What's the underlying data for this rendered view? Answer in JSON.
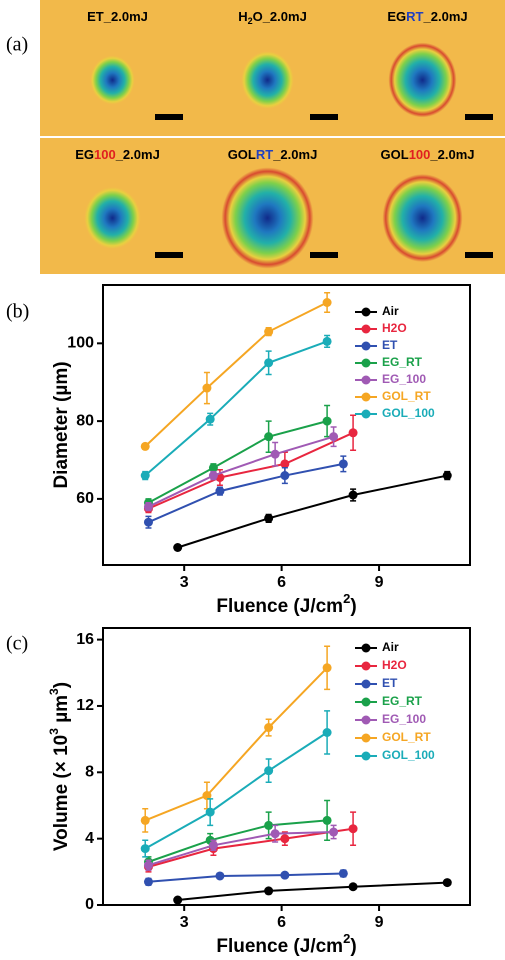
{
  "panel_a": {
    "label": "(a)",
    "images": [
      {
        "parts": [
          "ET",
          "_2.0mJ"
        ]
      },
      {
        "parts": [
          "H",
          "2",
          "O_2.0mJ"
        ]
      },
      {
        "parts": [
          "EG",
          "RT",
          "_2.0mJ"
        ]
      },
      {
        "parts": [
          "EG",
          "100",
          "_2.0mJ"
        ]
      },
      {
        "parts": [
          "GOL",
          "RT",
          "_2.0mJ"
        ]
      },
      {
        "parts": [
          "GOL",
          "100",
          "_2.0mJ"
        ]
      }
    ]
  },
  "chart_data": [
    {
      "type": "line",
      "panel": "(b)",
      "y_label": "Diameter (µm)",
      "x_label": [
        "Fluence (J/cm",
        "2",
        ")"
      ],
      "xlim": [
        0.5,
        11.8
      ],
      "xticks": [
        3,
        6,
        9
      ],
      "ylim": [
        43,
        115
      ],
      "yticks": [
        60,
        80,
        100
      ],
      "legend": "upper right",
      "series": [
        {
          "name": "Air",
          "color": "#000000",
          "x": [
            2.8,
            5.6,
            8.2,
            11.1
          ],
          "values": [
            47.5,
            55,
            61,
            66
          ],
          "errors": [
            0.5,
            1,
            1.5,
            1
          ]
        },
        {
          "name": "H2O",
          "color": "#e8263f",
          "x": [
            1.9,
            4.1,
            6.1,
            8.2
          ],
          "values": [
            57.5,
            65.5,
            69,
            77
          ],
          "errors": [
            1,
            2,
            3,
            4.5
          ]
        },
        {
          "name": "ET",
          "color": "#3050b0",
          "x": [
            1.9,
            4.1,
            6.1,
            7.9
          ],
          "values": [
            54,
            62,
            66,
            69
          ],
          "errors": [
            1.5,
            1,
            2,
            2
          ]
        },
        {
          "name": "EG_RT",
          "color": "#1aa14a",
          "x": [
            1.9,
            3.9,
            5.6,
            7.4
          ],
          "values": [
            59,
            68,
            76,
            80
          ],
          "errors": [
            1,
            1,
            4,
            4
          ]
        },
        {
          "name": "EG_100",
          "color": "#a05ab4",
          "x": [
            1.9,
            3.9,
            5.8,
            7.6
          ],
          "values": [
            58,
            66,
            71.5,
            76
          ],
          "errors": [
            1,
            1,
            3,
            2.5
          ]
        },
        {
          "name": "GOL_RT",
          "color": "#f5a623",
          "x": [
            1.8,
            3.7,
            5.6,
            7.4
          ],
          "values": [
            73.5,
            88.5,
            103,
            110.5
          ],
          "errors": [
            0.5,
            4,
            1,
            2.5
          ]
        },
        {
          "name": "GOL_100",
          "color": "#1aacb8",
          "x": [
            1.8,
            3.8,
            5.6,
            7.4
          ],
          "values": [
            66,
            80.5,
            95,
            100.5
          ],
          "errors": [
            1,
            1.5,
            3,
            1.5
          ]
        }
      ]
    },
    {
      "type": "line",
      "panel": "(c)",
      "y_label": [
        "Volume (× 10",
        "3",
        " µm",
        "3",
        ")"
      ],
      "x_label": [
        "Fluence (J/cm",
        "2",
        ")"
      ],
      "xlim": [
        0.5,
        11.8
      ],
      "xticks": [
        3,
        6,
        9
      ],
      "ylim": [
        0,
        16.7
      ],
      "yticks": [
        0,
        4,
        8,
        12,
        16
      ],
      "legend": "upper right",
      "series": [
        {
          "name": "Air",
          "color": "#000000",
          "x": [
            2.8,
            5.6,
            8.2,
            11.1
          ],
          "values": [
            0.3,
            0.85,
            1.1,
            1.35
          ],
          "errors": [
            0.1,
            0.1,
            0.1,
            0.1
          ]
        },
        {
          "name": "H2O",
          "color": "#e8263f",
          "x": [
            1.9,
            3.9,
            6.1,
            8.2
          ],
          "values": [
            2.3,
            3.4,
            4.0,
            4.6
          ],
          "errors": [
            0.3,
            0.4,
            0.4,
            1.0
          ]
        },
        {
          "name": "ET",
          "color": "#3050b0",
          "x": [
            1.9,
            4.1,
            6.1,
            7.9
          ],
          "values": [
            1.4,
            1.75,
            1.8,
            1.9
          ],
          "errors": [
            0.2,
            0.1,
            0.1,
            0.2
          ]
        },
        {
          "name": "EG_RT",
          "color": "#1aa14a",
          "x": [
            1.9,
            3.8,
            5.6,
            7.4
          ],
          "values": [
            2.6,
            3.9,
            4.8,
            5.1
          ],
          "errors": [
            0.3,
            0.4,
            0.8,
            1.2
          ]
        },
        {
          "name": "EG_100",
          "color": "#a05ab4",
          "x": [
            1.9,
            3.9,
            5.8,
            7.6
          ],
          "values": [
            2.4,
            3.6,
            4.3,
            4.4
          ],
          "errors": [
            0.3,
            0.3,
            0.5,
            0.4
          ]
        },
        {
          "name": "GOL_RT",
          "color": "#f5a623",
          "x": [
            1.8,
            3.7,
            5.6,
            7.4
          ],
          "values": [
            5.1,
            6.6,
            10.7,
            14.3
          ],
          "errors": [
            0.7,
            0.8,
            0.5,
            1.3
          ]
        },
        {
          "name": "GOL_100",
          "color": "#1aacb8",
          "x": [
            1.8,
            3.8,
            5.6,
            7.4
          ],
          "values": [
            3.4,
            5.6,
            8.1,
            10.4
          ],
          "errors": [
            0.5,
            0.8,
            0.7,
            1.3
          ]
        }
      ]
    }
  ]
}
